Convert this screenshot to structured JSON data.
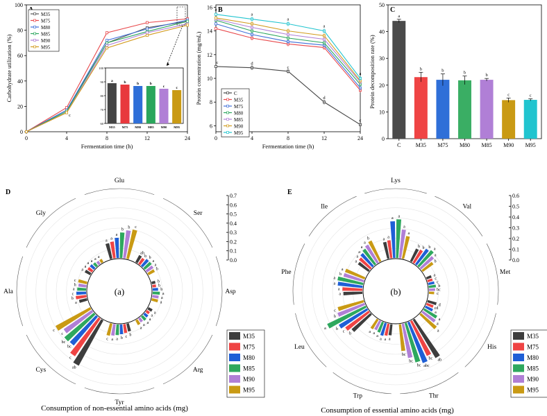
{
  "chart_data": [
    {
      "panel": "A",
      "type": "line",
      "xlabel": "Fermentation time (h)",
      "ylabel": "Carbohydrate utilization (%)",
      "x": [
        0,
        4,
        8,
        12,
        24
      ],
      "xticks": [
        "0",
        "4",
        "8",
        "12",
        "24"
      ],
      "ylim": [
        0,
        100
      ],
      "yticks": [
        0,
        20,
        40,
        60,
        80,
        100
      ],
      "point_labels": [
        "",
        "c",
        "",
        "",
        ""
      ],
      "series": [
        {
          "name": "M35",
          "color": "#555555",
          "values": [
            0,
            17,
            70,
            82,
            87
          ]
        },
        {
          "name": "M75",
          "color": "#e8474a",
          "values": [
            0,
            19,
            78,
            86,
            89
          ]
        },
        {
          "name": "M80",
          "color": "#3f6fd8",
          "values": [
            0,
            17,
            72,
            81,
            88
          ]
        },
        {
          "name": "M85",
          "color": "#2aa65c",
          "values": [
            0,
            16,
            70,
            79,
            87
          ]
        },
        {
          "name": "M90",
          "color": "#b07fd6",
          "values": [
            0,
            15,
            68,
            78,
            85
          ]
        },
        {
          "name": "M95",
          "color": "#d29b1d",
          "values": [
            0,
            15,
            66,
            76,
            84
          ]
        }
      ],
      "inset": {
        "type": "bar",
        "categories": [
          "M35",
          "M75",
          "M80",
          "M85",
          "M90",
          "M95"
        ],
        "values": [
          89,
          88,
          87,
          87,
          85,
          84
        ],
        "labels": [
          "a",
          "b",
          "b",
          "b",
          "c",
          "c"
        ],
        "ylim": [
          60,
          100
        ],
        "yticks": [
          60,
          70,
          80,
          90,
          100
        ],
        "colors": [
          "#444444",
          "#e8383d",
          "#2f6fd8",
          "#2aa65c",
          "#b07fd6",
          "#c99a14"
        ]
      }
    },
    {
      "panel": "B",
      "type": "line",
      "xlabel": "Fermentation time (h)",
      "ylabel": "Protein concentration (mg/mL)",
      "x": [
        0,
        4,
        8,
        12,
        24
      ],
      "xticks": [
        "0",
        "4",
        "8",
        "12",
        "24"
      ],
      "ylim": [
        5.5,
        16.2
      ],
      "yticks": [
        6,
        8,
        10,
        12,
        14,
        16
      ],
      "series": [
        {
          "name": "C",
          "color": "#444444",
          "values": [
            11.0,
            10.9,
            10.6,
            8.0,
            6.1
          ],
          "labels": [
            "c",
            "d",
            "c",
            "d",
            "c"
          ]
        },
        {
          "name": "M35",
          "color": "#e8474a",
          "values": [
            14.2,
            13.4,
            12.9,
            12.6,
            9.0
          ]
        },
        {
          "name": "M75",
          "color": "#3f6fd8",
          "values": [
            14.6,
            13.7,
            13.1,
            12.8,
            9.2
          ]
        },
        {
          "name": "M80",
          "color": "#2aa65c",
          "values": [
            14.9,
            14.0,
            13.4,
            13.0,
            9.5
          ]
        },
        {
          "name": "M85",
          "color": "#b07fd6",
          "values": [
            15.0,
            14.3,
            13.7,
            13.3,
            9.7
          ]
        },
        {
          "name": "M90",
          "color": "#d29b1d",
          "values": [
            15.1,
            14.6,
            14.0,
            13.6,
            9.8
          ]
        },
        {
          "name": "M95",
          "color": "#21c4cf",
          "values": [
            15.4,
            15.0,
            14.6,
            14.0,
            10.0
          ]
        }
      ],
      "top_labels": [
        "a",
        "a",
        "a",
        "a",
        "a"
      ]
    },
    {
      "panel": "C",
      "type": "bar",
      "ylabel": "Protein decomposition rate (%)",
      "categories": [
        "C",
        "M35",
        "M75",
        "M80",
        "M85",
        "M90",
        "M95"
      ],
      "values": [
        44,
        23,
        22,
        21.8,
        22,
        14.4,
        14.5
      ],
      "errors": [
        0.6,
        1.8,
        2.2,
        1.6,
        0.5,
        0.8,
        0.4
      ],
      "labels": [
        "a",
        "b",
        "b",
        "b",
        "b",
        "c",
        "c"
      ],
      "colors": [
        "#4a4a4a",
        "#ef4444",
        "#2f6fd8",
        "#3aae64",
        "#b07fd6",
        "#c99a14",
        "#21c4cf"
      ],
      "ylim": [
        0,
        50
      ],
      "yticks": [
        0,
        10,
        20,
        30,
        40,
        50
      ]
    },
    {
      "panel": "D",
      "type": "bar",
      "layout": "radial",
      "center_label": "(a)",
      "xlabel": "Consumption of non-essential amino acids (mg)",
      "categories": [
        "Glu",
        "Ser",
        "Asp",
        "Arg",
        "Tyr",
        "Cys",
        "Ala",
        "Gly"
      ],
      "scale_ticks": [
        "0.7",
        "0.6",
        "0.5",
        "0.4",
        "0.3",
        "0.2",
        "0.1",
        "0.0"
      ],
      "scale_max": 0.7,
      "series": [
        {
          "name": "M35",
          "color": "#3d3d3d",
          "values": [
            0.19,
            0.1,
            0.05,
            0.06,
            0.1,
            0.6,
            0.1,
            0.08
          ]
        },
        {
          "name": "M75",
          "color": "#ef4444",
          "values": [
            0.2,
            0.09,
            0.05,
            0.05,
            0.11,
            0.53,
            0.13,
            0.07
          ]
        },
        {
          "name": "M80",
          "color": "#1f5fd6",
          "values": [
            0.24,
            0.11,
            0.07,
            0.06,
            0.12,
            0.44,
            0.12,
            0.07
          ]
        },
        {
          "name": "M85",
          "color": "#2ea85e",
          "values": [
            0.3,
            0.11,
            0.09,
            0.07,
            0.13,
            0.45,
            0.11,
            0.06
          ]
        },
        {
          "name": "M90",
          "color": "#b07fd6",
          "values": [
            0.33,
            0.1,
            0.08,
            0.06,
            0.14,
            0.4,
            0.1,
            0.05
          ]
        },
        {
          "name": "M95",
          "color": "#c99a14",
          "values": [
            0.35,
            0.09,
            0.08,
            0.07,
            0.15,
            0.46,
            0.11,
            0.05
          ]
        }
      ],
      "labels": [
        [
          "a",
          "a",
          "a",
          "b",
          "b",
          "c"
        ],
        [
          "ab",
          "b",
          "b",
          "a",
          "a",
          "b"
        ],
        [
          "b",
          "b",
          "b",
          "a",
          "a",
          "a"
        ],
        [
          "a",
          "a",
          "a",
          "a",
          "a",
          "a"
        ],
        [
          "b",
          "c",
          "b",
          "a",
          "a",
          "c"
        ],
        [
          "ab",
          "c",
          "bc",
          "bc",
          "c",
          "c"
        ],
        [
          "a",
          "b",
          "c",
          "a",
          "b",
          "c"
        ],
        [
          "a",
          "a",
          "a",
          "a",
          "a",
          "a"
        ]
      ]
    },
    {
      "panel": "E",
      "type": "bar",
      "layout": "radial",
      "center_label": "(b)",
      "xlabel": "Consumption of essential amino acids (mg)",
      "categories": [
        "Lys",
        "Val",
        "Met",
        "His",
        "Thr",
        "Trp",
        "Leu",
        "Phe",
        "Ile"
      ],
      "scale_ticks": [
        "0.6",
        "0.5",
        "0.4",
        "0.3",
        "0.2",
        "0.1",
        "0.0"
      ],
      "scale_max": 0.62,
      "series": [
        {
          "name": "M35",
          "color": "#3d3d3d",
          "values": [
            0.18,
            0.15,
            0.06,
            0.1,
            0.46,
            0.12,
            0.26,
            0.2,
            0.14
          ]
        },
        {
          "name": "M75",
          "color": "#ef4444",
          "values": [
            0.19,
            0.16,
            0.06,
            0.08,
            0.4,
            0.13,
            0.3,
            0.21,
            0.16
          ]
        },
        {
          "name": "M80",
          "color": "#1f5fd6",
          "values": [
            0.38,
            0.2,
            0.07,
            0.09,
            0.45,
            0.14,
            0.34,
            0.26,
            0.18
          ]
        },
        {
          "name": "M85",
          "color": "#2ea85e",
          "values": [
            0.4,
            0.22,
            0.08,
            0.16,
            0.42,
            0.12,
            0.44,
            0.27,
            0.2
          ]
        },
        {
          "name": "M90",
          "color": "#b07fd6",
          "values": [
            0.3,
            0.18,
            0.07,
            0.17,
            0.36,
            0.11,
            0.3,
            0.22,
            0.22
          ]
        },
        {
          "name": "M95",
          "color": "#c99a14",
          "values": [
            0.24,
            0.14,
            0.06,
            0.22,
            0.28,
            0.12,
            0.28,
            0.22,
            0.24
          ]
        }
      ],
      "labels": [
        [
          "a",
          "a",
          "a",
          "a",
          "a",
          "a"
        ],
        [
          "b",
          "b",
          "b",
          "a",
          "a",
          "b"
        ],
        [
          "a",
          "c",
          "c",
          "b",
          "bc",
          "c"
        ],
        [
          "d",
          "cd",
          "a",
          "a",
          "a",
          "a"
        ],
        [
          "ab",
          "bc",
          "abc",
          "bc",
          "bc",
          "bc"
        ],
        [
          "a",
          "a",
          "a",
          "a",
          "a",
          "a"
        ],
        [
          "b",
          "c",
          "b",
          "a",
          "b",
          "c"
        ],
        [
          "a",
          "a",
          "a",
          "a",
          "b",
          "a"
        ],
        [
          "a",
          "a",
          "a",
          "a",
          "a",
          "b"
        ]
      ]
    }
  ],
  "legend_panels": {
    "A": {
      "letter": "A"
    },
    "B": {
      "letter": "B"
    },
    "C": {
      "letter": "C"
    },
    "D": {
      "letter": "D"
    },
    "E": {
      "letter": "E"
    }
  }
}
